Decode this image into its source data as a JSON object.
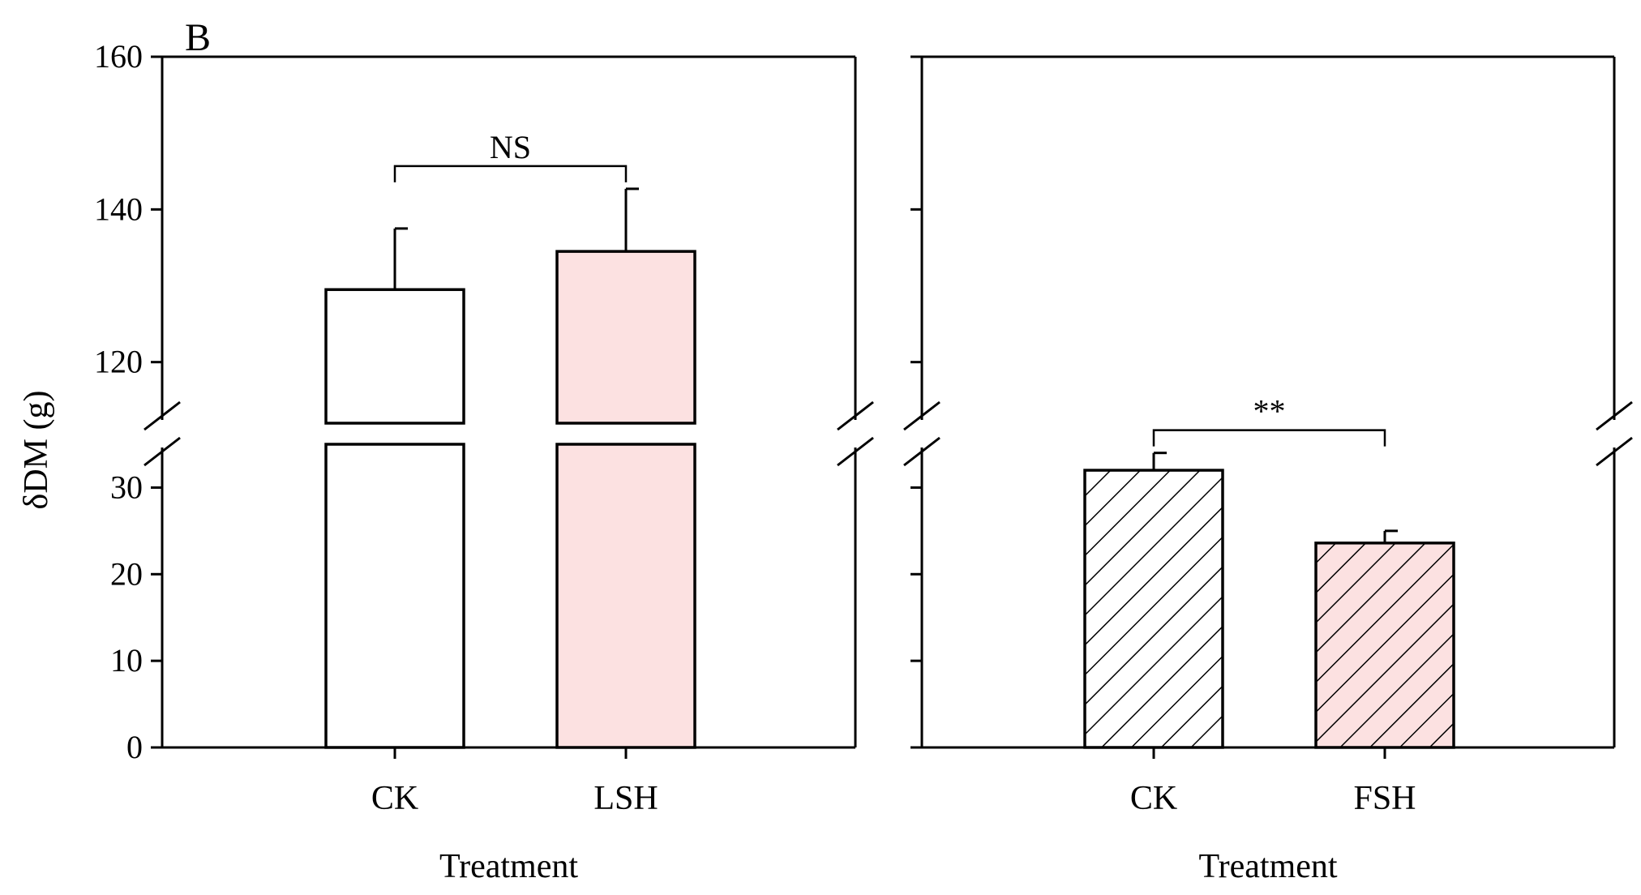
{
  "chart_data": [
    {
      "type": "bar",
      "panel_label": "B",
      "title": "",
      "xlabel": "Treatment",
      "ylabel": "δDM (g)",
      "y_axis_break": {
        "lower_range": [
          0,
          35
        ],
        "upper_range": [
          112,
          160
        ]
      },
      "ylim": [
        0,
        160
      ],
      "y_ticks_lower": [
        0,
        10,
        20,
        30
      ],
      "y_ticks_upper": [
        120,
        140,
        160
      ],
      "categories": [
        "CK",
        "LSH"
      ],
      "values": [
        129.5,
        134.5
      ],
      "error_upper": [
        137.5,
        142.7
      ],
      "bar_colors": [
        "#ffffff",
        "#fce1e1"
      ],
      "pattern": "solid",
      "significance": {
        "label": "NS",
        "between": [
          "CK",
          "LSH"
        ]
      },
      "grid": false
    },
    {
      "type": "bar",
      "title": "",
      "xlabel": "Treatment",
      "ylabel": "",
      "y_axis_break": {
        "lower_range": [
          0,
          35
        ],
        "upper_range": [
          112,
          160
        ]
      },
      "ylim": [
        0,
        160
      ],
      "categories": [
        "CK",
        "FSH"
      ],
      "values": [
        32.0,
        23.6
      ],
      "error_upper": [
        34.0,
        25.0
      ],
      "bar_colors": [
        "#ffffff",
        "#fce1e1"
      ],
      "pattern": "diagonal-hatch",
      "significance": {
        "label": "**",
        "between": [
          "CK",
          "FSH"
        ]
      },
      "grid": false
    }
  ]
}
